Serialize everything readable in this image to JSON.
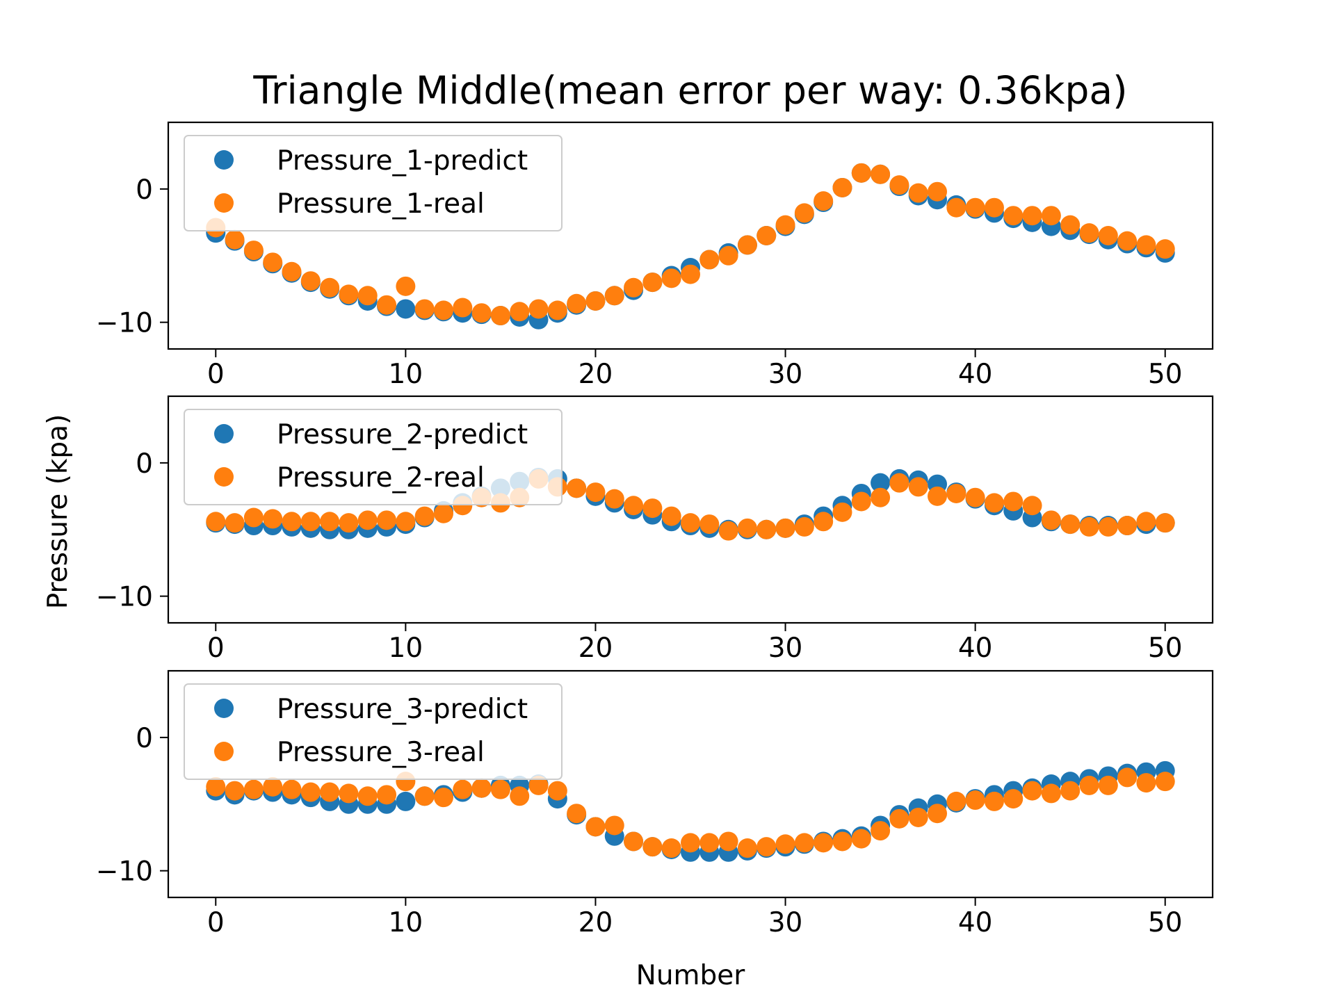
{
  "chart_data": {
    "type": "scatter",
    "title": "Triangle Middle(mean error per way: 0.36kpa)",
    "xlabel": "Number",
    "ylabel": "Pressure (kpa)",
    "xlim": [
      -2.5,
      52.5
    ],
    "ylim": [
      -12,
      5
    ],
    "x_ticks": [
      0,
      10,
      20,
      30,
      40,
      50
    ],
    "y_ticks": [
      0,
      -10
    ],
    "legend_placement": "upper-left",
    "colors": {
      "predict": "#1f77b4",
      "real": "#ff7f0e"
    },
    "x": [
      0,
      1,
      2,
      3,
      4,
      5,
      6,
      7,
      8,
      9,
      10,
      11,
      12,
      13,
      14,
      15,
      16,
      17,
      18,
      19,
      20,
      21,
      22,
      23,
      24,
      25,
      26,
      27,
      28,
      29,
      30,
      31,
      32,
      33,
      34,
      35,
      36,
      37,
      38,
      39,
      40,
      41,
      42,
      43,
      44,
      45,
      46,
      47,
      48,
      49,
      50
    ],
    "panels": [
      {
        "series": [
          {
            "name": "Pressure_1-predict",
            "color": "#1f77b4",
            "values": [
              -3.3,
              -3.9,
              -4.7,
              -5.6,
              -6.3,
              -7.0,
              -7.5,
              -8.0,
              -8.4,
              -8.8,
              -9.0,
              -9.1,
              -9.2,
              -9.3,
              -9.4,
              -9.5,
              -9.6,
              -9.8,
              -9.3,
              -8.7,
              -8.4,
              -8.0,
              -7.6,
              -7.0,
              -6.5,
              -5.9,
              -5.3,
              -4.8,
              -4.2,
              -3.5,
              -2.8,
              -1.9,
              -1.0,
              0.1,
              1.2,
              1.1,
              0.2,
              -0.5,
              -0.8,
              -1.2,
              -1.5,
              -1.8,
              -2.2,
              -2.5,
              -2.8,
              -3.1,
              -3.4,
              -3.8,
              -4.1,
              -4.4,
              -4.8
            ]
          },
          {
            "name": "Pressure_1-real",
            "color": "#ff7f0e",
            "values": [
              -2.9,
              -3.8,
              -4.6,
              -5.5,
              -6.2,
              -6.9,
              -7.4,
              -7.9,
              -8.0,
              -8.7,
              -7.3,
              -9.0,
              -9.1,
              -8.9,
              -9.3,
              -9.5,
              -9.2,
              -9.0,
              -9.1,
              -8.6,
              -8.4,
              -8.0,
              -7.4,
              -7.0,
              -6.7,
              -6.4,
              -5.3,
              -5.0,
              -4.2,
              -3.5,
              -2.7,
              -1.8,
              -0.9,
              0.1,
              1.2,
              1.1,
              0.3,
              -0.3,
              -0.2,
              -1.4,
              -1.4,
              -1.4,
              -2.0,
              -2.0,
              -2.0,
              -2.7,
              -3.3,
              -3.5,
              -3.9,
              -4.2,
              -4.5
            ]
          }
        ]
      },
      {
        "series": [
          {
            "name": "Pressure_2-predict",
            "color": "#1f77b4",
            "values": [
              -4.5,
              -4.6,
              -4.7,
              -4.7,
              -4.8,
              -4.9,
              -5.0,
              -5.0,
              -4.9,
              -4.8,
              -4.6,
              -4.1,
              -3.6,
              -3.0,
              -2.5,
              -1.9,
              -1.4,
              -1.1,
              -1.2,
              -1.9,
              -2.5,
              -3.0,
              -3.5,
              -3.9,
              -4.4,
              -4.7,
              -4.9,
              -5.0,
              -5.0,
              -5.0,
              -4.9,
              -4.6,
              -4.0,
              -3.2,
              -2.3,
              -1.5,
              -1.2,
              -1.3,
              -1.6,
              -2.2,
              -2.7,
              -3.2,
              -3.6,
              -4.1,
              -4.4,
              -4.6,
              -4.7,
              -4.7,
              -4.7,
              -4.6,
              -4.5
            ]
          },
          {
            "name": "Pressure_2-real",
            "color": "#ff7f0e",
            "values": [
              -4.4,
              -4.5,
              -4.1,
              -4.2,
              -4.4,
              -4.4,
              -4.4,
              -4.5,
              -4.3,
              -4.3,
              -4.4,
              -4.0,
              -3.8,
              -3.2,
              -2.6,
              -3.0,
              -2.6,
              -1.2,
              -1.8,
              -1.9,
              -2.2,
              -2.7,
              -3.2,
              -3.4,
              -4.0,
              -4.5,
              -4.6,
              -5.1,
              -4.9,
              -5.0,
              -4.9,
              -4.8,
              -4.4,
              -3.7,
              -2.9,
              -2.6,
              -1.5,
              -1.8,
              -2.5,
              -2.3,
              -2.6,
              -3.0,
              -2.9,
              -3.2,
              -4.3,
              -4.6,
              -4.8,
              -4.8,
              -4.7,
              -4.4,
              -4.5
            ]
          }
        ]
      },
      {
        "series": [
          {
            "name": "Pressure_3-predict",
            "color": "#1f77b4",
            "values": [
              -4.0,
              -4.3,
              -4.0,
              -4.1,
              -4.3,
              -4.5,
              -4.8,
              -5.0,
              -5.0,
              -5.0,
              -4.8,
              -4.4,
              -4.3,
              -4.1,
              -3.8,
              -3.6,
              -3.6,
              -3.5,
              -4.6,
              -5.8,
              -6.7,
              -7.4,
              -7.8,
              -8.2,
              -8.4,
              -8.6,
              -8.6,
              -8.6,
              -8.5,
              -8.3,
              -8.2,
              -8.0,
              -7.8,
              -7.6,
              -7.4,
              -6.6,
              -5.8,
              -5.3,
              -5.0,
              -4.9,
              -4.6,
              -4.3,
              -4.0,
              -3.8,
              -3.5,
              -3.3,
              -3.1,
              -2.9,
              -2.7,
              -2.6,
              -2.5
            ]
          },
          {
            "name": "Pressure_3-real",
            "color": "#ff7f0e",
            "values": [
              -3.7,
              -4.0,
              -3.9,
              -3.7,
              -3.9,
              -4.1,
              -4.1,
              -4.2,
              -4.4,
              -4.3,
              -3.3,
              -4.4,
              -4.5,
              -3.9,
              -3.8,
              -3.9,
              -4.4,
              -3.6,
              -4.0,
              -5.7,
              -6.7,
              -6.6,
              -7.8,
              -8.2,
              -8.3,
              -7.9,
              -7.9,
              -7.8,
              -8.3,
              -8.2,
              -8.0,
              -7.9,
              -7.9,
              -7.8,
              -7.6,
              -7.0,
              -6.1,
              -6.0,
              -5.7,
              -4.8,
              -4.7,
              -4.8,
              -4.6,
              -4.0,
              -4.2,
              -4.0,
              -3.6,
              -3.6,
              -3.0,
              -3.4,
              -3.3
            ]
          }
        ]
      }
    ]
  }
}
